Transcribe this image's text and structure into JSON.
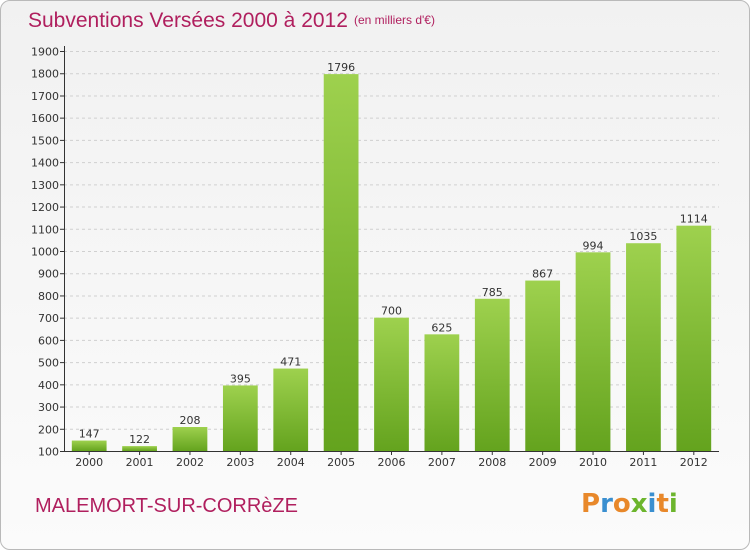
{
  "title": "Subventions Versées 2000 à 2012",
  "unit_note": "(en milliers d'€)",
  "commune": "MALEMORT-SUR-CORRèZE",
  "brand": {
    "text": "Proxiti",
    "letters": [
      "P",
      "r",
      "o",
      "x",
      "i",
      "t",
      "i"
    ],
    "colors": [
      "#e8882a",
      "#3a8fd0",
      "#e8882a",
      "#6cb52d",
      "#3a8fd0",
      "#e8882a",
      "#6cb52d"
    ]
  },
  "colors": {
    "title": "#b01f5e",
    "bar_light": "#9ed14e",
    "bar_dark": "#64a31e",
    "axis": "#333333",
    "grid": "#d0d0d0"
  },
  "chart_data": {
    "type": "bar",
    "categories": [
      "2000",
      "2001",
      "2002",
      "2003",
      "2004",
      "2005",
      "2006",
      "2007",
      "2008",
      "2009",
      "2010",
      "2011",
      "2012"
    ],
    "values": [
      147,
      122,
      208,
      395,
      471,
      1796,
      700,
      625,
      785,
      867,
      994,
      1035,
      1114
    ],
    "data_labels": [
      "147",
      "122",
      "208",
      "395",
      "471",
      "1796",
      "700",
      "625",
      "785",
      "867",
      "994",
      "1035",
      "1114"
    ],
    "yticks": [
      "100",
      "200",
      "300",
      "400",
      "500",
      "600",
      "700",
      "800",
      "900",
      "1000",
      "1100",
      "1200",
      "1300",
      "1400",
      "1500",
      "1600",
      "1700",
      "1800",
      "1900"
    ],
    "ylim": [
      100,
      1900
    ],
    "grid": true,
    "legend": "none"
  }
}
